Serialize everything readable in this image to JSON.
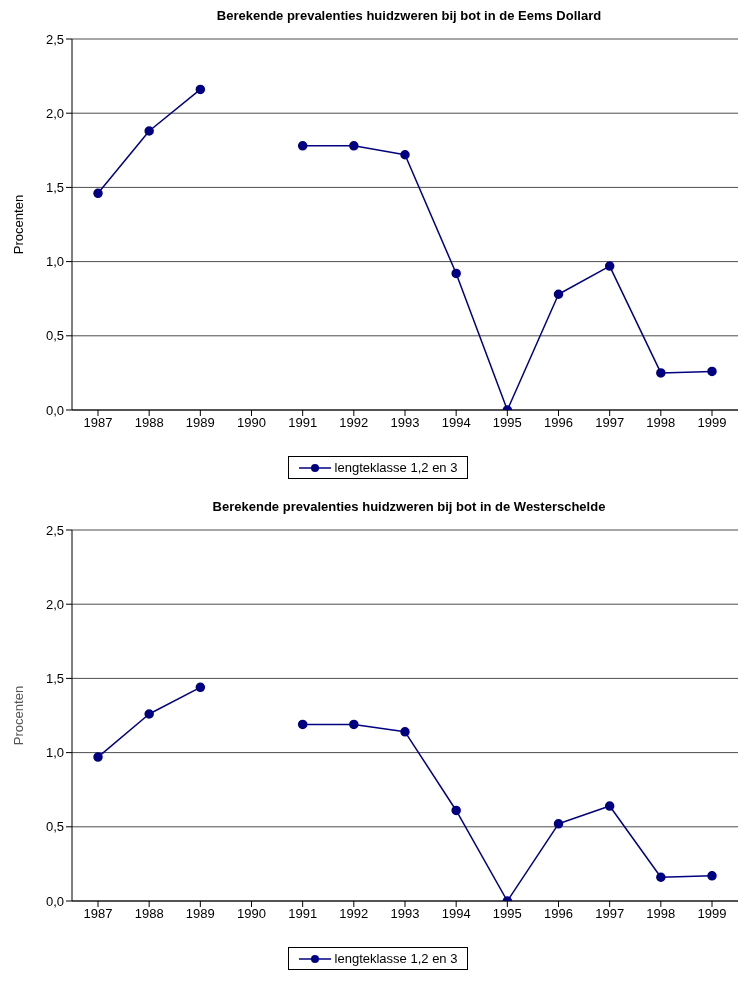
{
  "chart_data": [
    {
      "type": "line",
      "title": "Berekende prevalenties huidzweren bij bot in de Eems Dollard",
      "ylabel": "Procenten",
      "categories": [
        "1987",
        "1988",
        "1989",
        "1990",
        "1991",
        "1992",
        "1993",
        "1994",
        "1995",
        "1996",
        "1997",
        "1998",
        "1999"
      ],
      "series": [
        {
          "name": "lengteklasse 1,2 en 3",
          "color": "#000080",
          "values": [
            1.46,
            1.88,
            2.16,
            null,
            1.78,
            1.78,
            1.72,
            0.92,
            0,
            0.78,
            0.97,
            0.25,
            0.26
          ]
        }
      ],
      "ylim": [
        0,
        2.5
      ],
      "yticks": [
        {
          "value": 0,
          "label": "0,0"
        },
        {
          "value": 0.5,
          "label": "0,5"
        },
        {
          "value": 1,
          "label": "1,0"
        },
        {
          "value": 1.5,
          "label": "1,5"
        },
        {
          "value": 2,
          "label": "2,0"
        },
        {
          "value": 2.5,
          "label": "2,5"
        }
      ],
      "grid": "y",
      "legend": "bottom",
      "marker": "circle",
      "line_style": "solid"
    },
    {
      "type": "line",
      "title": "Berekende prevalenties huidzweren bij bot in de Westerschelde",
      "ylabel": "Procenten",
      "categories": [
        "1987",
        "1988",
        "1989",
        "1990",
        "1991",
        "1992",
        "1993",
        "1994",
        "1995",
        "1996",
        "1997",
        "1998",
        "1999"
      ],
      "series": [
        {
          "name": "lengteklasse 1,2 en 3",
          "color": "#000080",
          "values": [
            0.97,
            1.26,
            1.44,
            null,
            1.19,
            1.19,
            1.14,
            0.61,
            0,
            0.52,
            0.64,
            0.16,
            0.17
          ]
        }
      ],
      "ylim": [
        0,
        2.5
      ],
      "yticks": [
        {
          "value": 0,
          "label": "0,0"
        },
        {
          "value": 0.5,
          "label": "0,5"
        },
        {
          "value": 1,
          "label": "1,0"
        },
        {
          "value": 1.5,
          "label": "1,5"
        },
        {
          "value": 2,
          "label": "2,0"
        },
        {
          "value": 2.5,
          "label": "2,5"
        }
      ],
      "grid": "y",
      "legend": "bottom",
      "marker": "circle",
      "line_style": "solid"
    }
  ]
}
